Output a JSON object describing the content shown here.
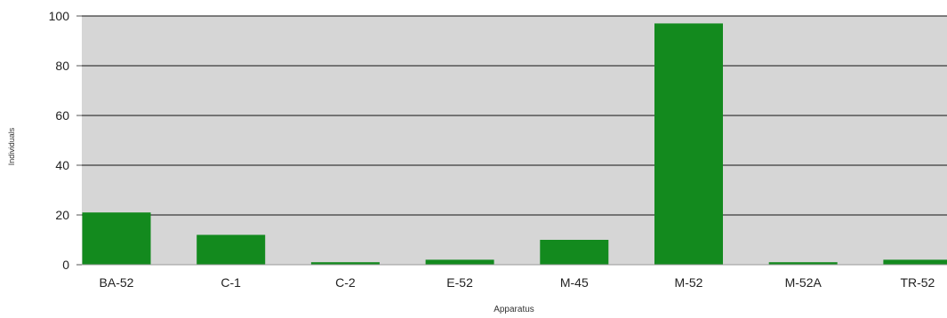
{
  "chart_data": {
    "type": "bar",
    "title": "",
    "xlabel": "Apparatus",
    "ylabel": "Individuals",
    "categories": [
      "BA-52",
      "C-1",
      "C-2",
      "E-52",
      "M-45",
      "M-52",
      "M-52A",
      "TR-52"
    ],
    "values": [
      21,
      12,
      1,
      2,
      10,
      97,
      1,
      2
    ],
    "ylim": [
      0,
      100
    ],
    "yticks": [
      "0",
      "20",
      "40",
      "60",
      "80",
      "100"
    ],
    "grid": true,
    "legend": "none",
    "colors": {
      "bar": "#138a1e",
      "plot_background": "#d6d6d6",
      "gridline": "#3a3a3a"
    }
  }
}
